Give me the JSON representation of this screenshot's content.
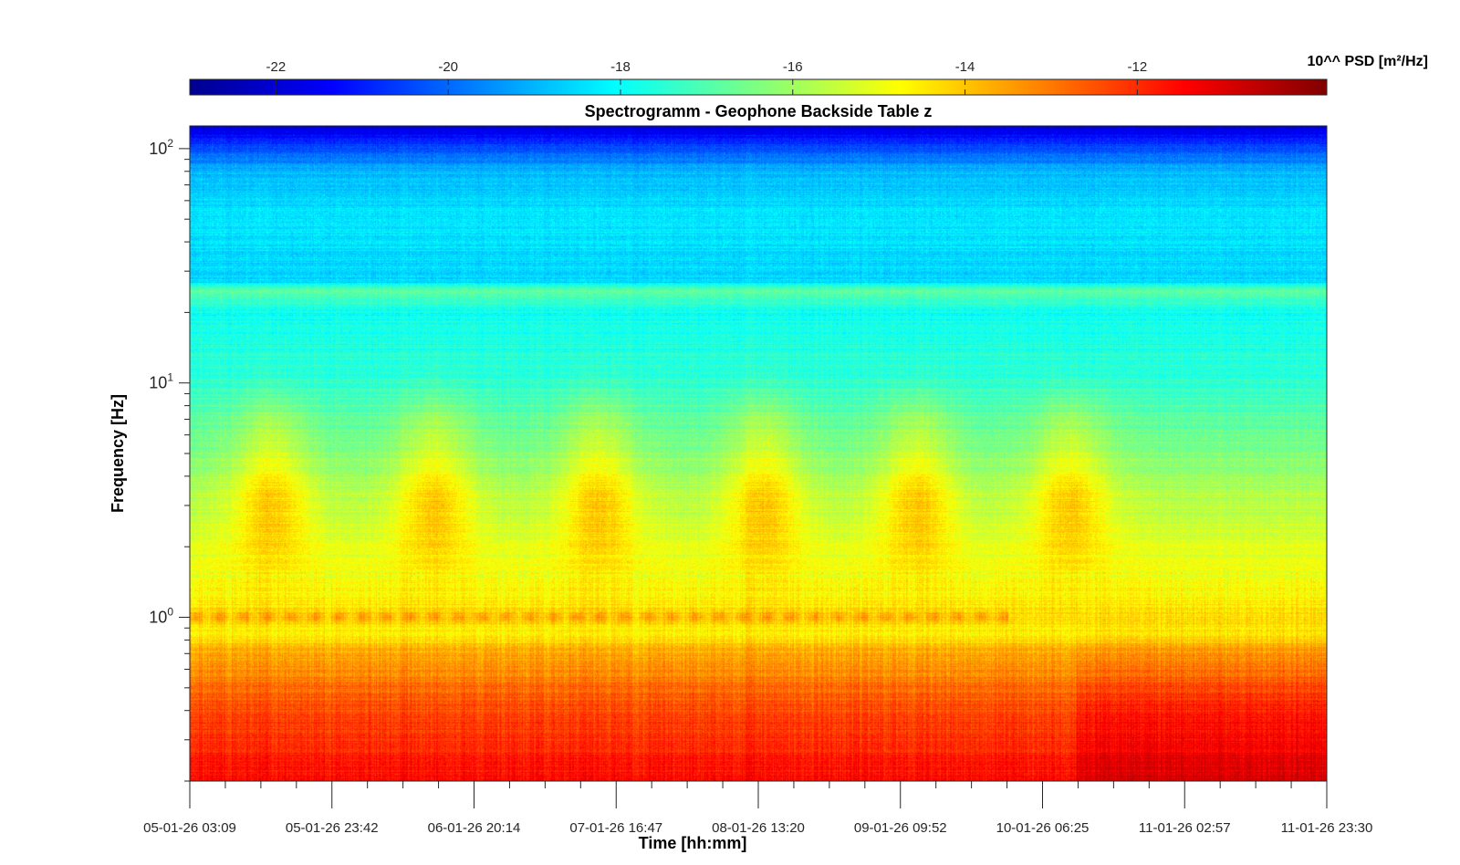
{
  "chart_data": {
    "type": "heatmap",
    "title": "Spectrogramm - Geophone Backside Table z",
    "xlabel": "Time [hh:mm]",
    "ylabel": "Frequency [Hz]",
    "colorbar": {
      "label": "10^^ PSD [m²/Hz]",
      "range": [
        -23,
        -9.8
      ],
      "ticks": [
        -22,
        -20,
        -18,
        -16,
        -14,
        -12
      ],
      "tick_labels": [
        "-22",
        "-20",
        "-18",
        "-16",
        "-14",
        "-12"
      ],
      "colormap": "jet"
    },
    "x_ticks": [
      "05-01-26 03:09",
      "05-01-26 23:42",
      "06-01-26 20:14",
      "07-01-26 16:47",
      "08-01-26 13:20",
      "09-01-26 09:52",
      "10-01-26 06:25",
      "11-01-26 02:57",
      "11-01-26 23:30"
    ],
    "y_scale": "log",
    "ylim": [
      0.2,
      125
    ],
    "y_major_ticks": [
      1,
      10,
      100
    ],
    "y_major_labels": [
      {
        "base": "10",
        "exp": "0"
      },
      {
        "base": "10",
        "exp": "1"
      },
      {
        "base": "10",
        "exp": "2"
      }
    ],
    "psd_profile": [
      {
        "freq": 0.2,
        "level": -11.5
      },
      {
        "freq": 0.3,
        "level": -12.0
      },
      {
        "freq": 0.45,
        "level": -12.6
      },
      {
        "freq": 0.7,
        "level": -13.6
      },
      {
        "freq": 0.85,
        "level": -14.6
      },
      {
        "freq": 1.0,
        "level": -14.3
      },
      {
        "freq": 1.4,
        "level": -14.9
      },
      {
        "freq": 2.0,
        "level": -15.2
      },
      {
        "freq": 3.0,
        "level": -15.6
      },
      {
        "freq": 5.0,
        "level": -16.4
      },
      {
        "freq": 10.0,
        "level": -17.4
      },
      {
        "freq": 20.0,
        "level": -17.9
      },
      {
        "freq": 25.0,
        "level": -16.8
      },
      {
        "freq": 27.0,
        "level": -18.6
      },
      {
        "freq": 50.0,
        "level": -18.3
      },
      {
        "freq": 80.0,
        "level": -19.0
      },
      {
        "freq": 110.0,
        "level": -21.0
      },
      {
        "freq": 125.0,
        "level": -22.0
      }
    ],
    "daily_activity_peaks": [
      {
        "center_fraction": 0.072,
        "peak_level": -13.5
      },
      {
        "center_fraction": 0.215,
        "peak_level": -13.4
      },
      {
        "center_fraction": 0.36,
        "peak_level": -13.5
      },
      {
        "center_fraction": 0.505,
        "peak_level": -13.3
      },
      {
        "center_fraction": 0.64,
        "peak_level": -13.5
      },
      {
        "center_fraction": 0.775,
        "peak_level": -13.6
      }
    ]
  }
}
